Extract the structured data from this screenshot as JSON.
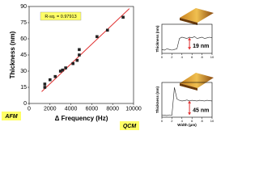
{
  "chart_data": [
    {
      "type": "scatter",
      "x_label": "Δ Frequency (Hz)",
      "y_label": "Thickness (nm)",
      "x": [
        1500,
        1500,
        2000,
        2500,
        3000,
        3200,
        3500,
        4200,
        4600,
        4800,
        4800,
        6500,
        7500,
        9000
      ],
      "values": [
        15,
        18,
        22,
        25,
        30,
        31,
        33,
        37,
        40,
        45,
        50,
        62,
        68,
        80
      ],
      "color": "#222222",
      "fit": {
        "x": [
          1200,
          9600
        ],
        "values": [
          11,
          88
        ],
        "color": "#e03030"
      },
      "annotation": "R-sq. = 0.97913",
      "left_label": "AFM",
      "right_label": "QCM",
      "xlim": [
        0,
        10000
      ],
      "xticks": [
        0,
        2000,
        4000,
        6000,
        8000,
        10000
      ],
      "ylim": [
        0,
        90
      ],
      "yticks": [
        0,
        15,
        30,
        45,
        60,
        75,
        90
      ]
    },
    {
      "type": "line",
      "y_label": "Thickness (nm)",
      "annotation": "19 nm",
      "x": [
        0,
        0.5,
        1,
        1.5,
        2,
        2.5,
        3,
        3.5,
        4,
        4.5,
        5,
        5.5,
        6,
        6.5,
        7,
        7.5,
        8,
        8.5,
        9,
        9.5,
        10
      ],
      "values": [
        1,
        0,
        2,
        1,
        0,
        1,
        2,
        18,
        20,
        19,
        18,
        20,
        19,
        21,
        18,
        19,
        20,
        18,
        19,
        20,
        19
      ],
      "color": "#222222",
      "xlim": [
        0,
        10
      ],
      "xticks": [
        0,
        2,
        4,
        6,
        8,
        10
      ],
      "ylim": [
        -5,
        40
      ]
    },
    {
      "type": "line",
      "x_label": "Width (μm)",
      "y_label": "Thickness (nm)",
      "annotation": "45 nm",
      "x": [
        0,
        0.5,
        1,
        1.5,
        2,
        2.5,
        3,
        3.5,
        4,
        4.5,
        5,
        5.5,
        6,
        6.5,
        7,
        7.5,
        8,
        8.5,
        9,
        9.5,
        10
      ],
      "values": [
        2,
        1,
        0,
        2,
        1,
        85,
        50,
        46,
        44,
        45,
        47,
        44,
        46,
        45,
        44,
        46,
        45,
        44,
        46,
        45,
        44
      ],
      "color": "#222222",
      "xlim": [
        0,
        10
      ],
      "xticks": [
        0,
        2,
        4,
        6,
        8,
        10
      ],
      "ylim": [
        -5,
        100
      ]
    }
  ]
}
